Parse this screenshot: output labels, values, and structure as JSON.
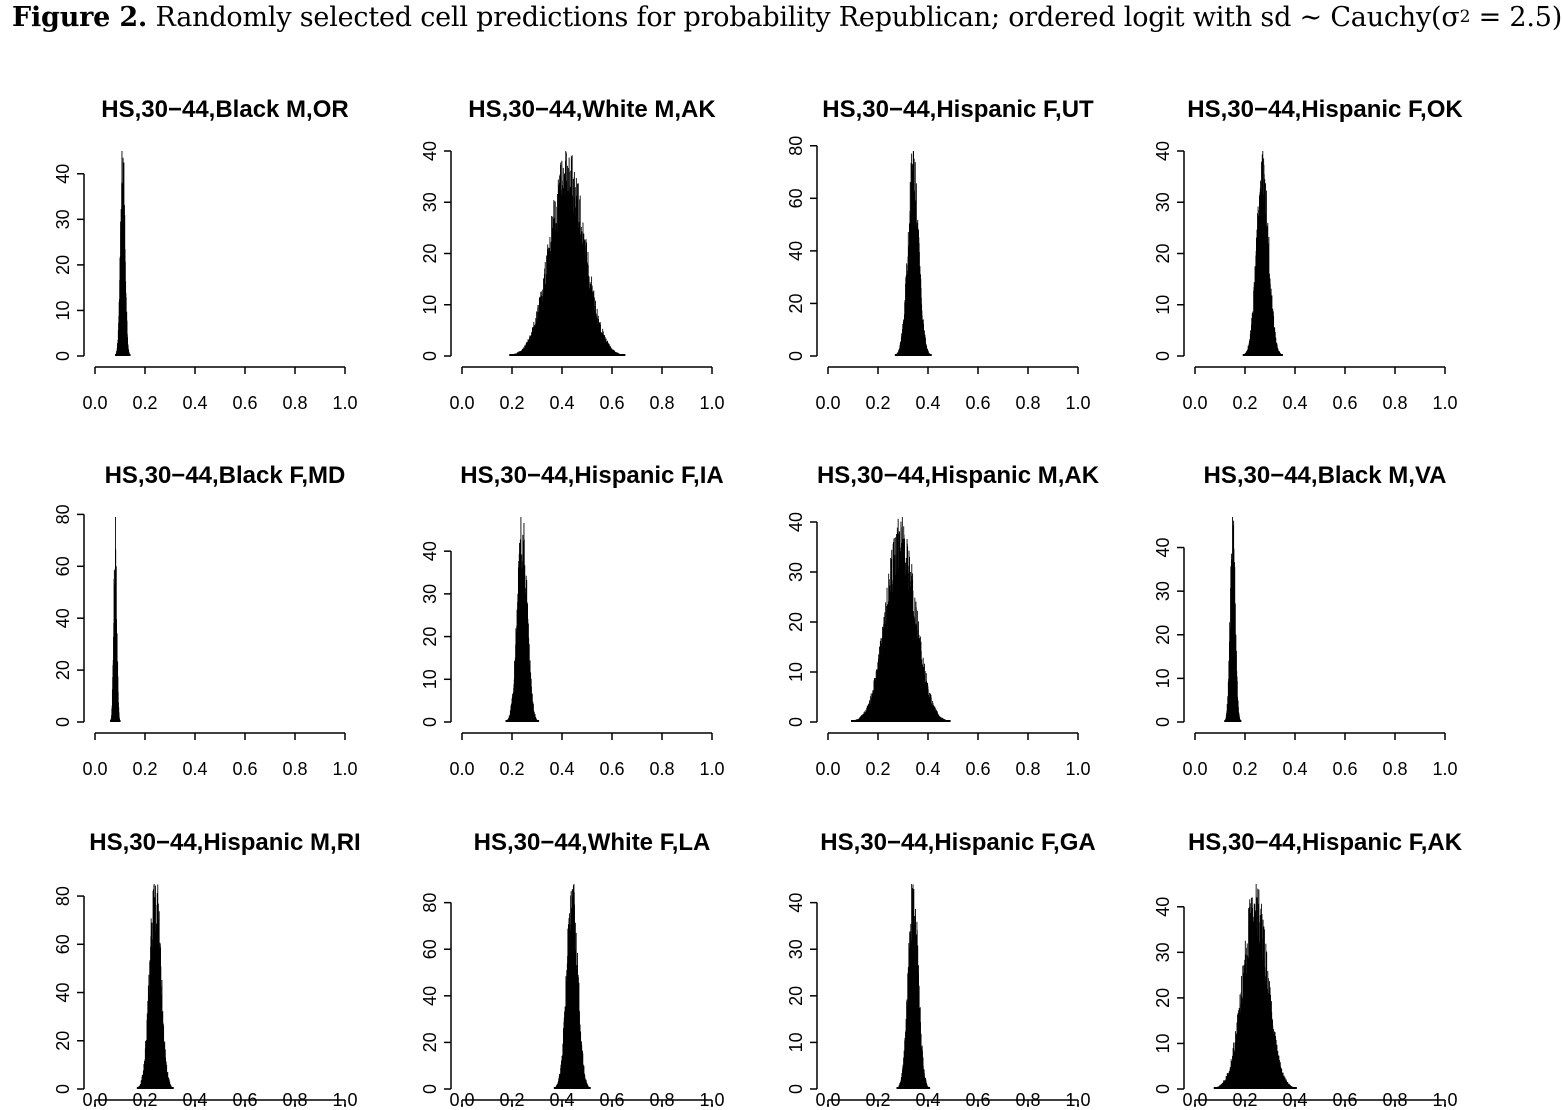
{
  "figure": {
    "label": "Figure 2.",
    "text_before": "Randomly selected cell predictions for probability Republican; ordered logit with sd ∼ Cauchy(σ",
    "superscript": "2",
    "text_after": " = 2.5)"
  },
  "colors": {
    "bars": "#000000",
    "axes": "#000000",
    "background": "#ffffff"
  },
  "chart_data": [
    {
      "type": "bar",
      "title": "HS,30−44,Black M,OR",
      "xlim": [
        0,
        1
      ],
      "xticks": [
        "0.0",
        "0.2",
        "0.4",
        "0.6",
        "0.8",
        "1.0"
      ],
      "yticks": [
        0,
        10,
        20,
        30,
        40
      ],
      "ymax_shown": 45,
      "mean": 0.11,
      "sd": 0.009
    },
    {
      "type": "bar",
      "title": "HS,30−44,White M,AK",
      "xlim": [
        0,
        1
      ],
      "xticks": [
        "0.0",
        "0.2",
        "0.4",
        "0.6",
        "0.8",
        "1.0"
      ],
      "yticks": [
        0,
        10,
        20,
        30,
        40
      ],
      "ymax_shown": 40,
      "mean": 0.42,
      "sd": 0.07
    },
    {
      "type": "bar",
      "title": "HS,30−44,Hispanic F,UT",
      "xlim": [
        0,
        1
      ],
      "xticks": [
        "0.0",
        "0.2",
        "0.4",
        "0.6",
        "0.8",
        "1.0"
      ],
      "yticks": [
        0,
        20,
        40,
        60,
        80
      ],
      "ymax_shown": 78,
      "mean": 0.34,
      "sd": 0.022
    },
    {
      "type": "bar",
      "title": "HS,30−44,Hispanic F,OK",
      "xlim": [
        0,
        1
      ],
      "xticks": [
        "0.0",
        "0.2",
        "0.4",
        "0.6",
        "0.8",
        "1.0"
      ],
      "yticks": [
        0,
        10,
        20,
        30,
        40
      ],
      "ymax_shown": 40,
      "mean": 0.27,
      "sd": 0.024
    },
    {
      "type": "bar",
      "title": "HS,30−44,Black F,MD",
      "xlim": [
        0,
        1
      ],
      "xticks": [
        "0.0",
        "0.2",
        "0.4",
        "0.6",
        "0.8",
        "1.0"
      ],
      "yticks": [
        0,
        20,
        40,
        60,
        80
      ],
      "ymax_shown": 79,
      "mean": 0.08,
      "sd": 0.006
    },
    {
      "type": "bar",
      "title": "HS,30−44,Hispanic F,IA",
      "xlim": [
        0,
        1
      ],
      "xticks": [
        "0.0",
        "0.2",
        "0.4",
        "0.6",
        "0.8",
        "1.0"
      ],
      "yticks": [
        0,
        10,
        20,
        30,
        40
      ],
      "ymax_shown": 48,
      "mean": 0.24,
      "sd": 0.02
    },
    {
      "type": "bar",
      "title": "HS,30−44,Hispanic M,AK",
      "xlim": [
        0,
        1
      ],
      "xticks": [
        "0.0",
        "0.2",
        "0.4",
        "0.6",
        "0.8",
        "1.0"
      ],
      "yticks": [
        0,
        10,
        20,
        30,
        40
      ],
      "ymax_shown": 41,
      "mean": 0.29,
      "sd": 0.06
    },
    {
      "type": "bar",
      "title": "HS,30−44,Black M,VA",
      "xlim": [
        0,
        1
      ],
      "xticks": [
        "0.0",
        "0.2",
        "0.4",
        "0.6",
        "0.8",
        "1.0"
      ],
      "yticks": [
        0,
        10,
        20,
        30,
        40
      ],
      "ymax_shown": 47,
      "mean": 0.15,
      "sd": 0.01
    },
    {
      "type": "bar",
      "title": "HS,30−44,Hispanic M,RI",
      "xlim": [
        0,
        1
      ],
      "xticks": [
        "0.0",
        "0.2",
        "0.4",
        "0.6",
        "0.8",
        "1.0"
      ],
      "yticks": [
        0,
        20,
        40,
        60,
        80
      ],
      "ymax_shown": 85,
      "mean": 0.24,
      "sd": 0.022
    },
    {
      "type": "bar",
      "title": "HS,30−44,White F,LA",
      "xlim": [
        0,
        1
      ],
      "xticks": [
        "0.0",
        "0.2",
        "0.4",
        "0.6",
        "0.8",
        "1.0"
      ],
      "yticks": [
        0,
        20,
        40,
        60,
        80
      ],
      "ymax_shown": 88,
      "mean": 0.44,
      "sd": 0.022
    },
    {
      "type": "bar",
      "title": "HS,30−44,Hispanic F,GA",
      "xlim": [
        0,
        1
      ],
      "xticks": [
        "0.0",
        "0.2",
        "0.4",
        "0.6",
        "0.8",
        "1.0"
      ],
      "yticks": [
        0,
        10,
        20,
        30,
        40
      ],
      "ymax_shown": 44,
      "mean": 0.34,
      "sd": 0.02
    },
    {
      "type": "bar",
      "title": "HS,30−44,Hispanic F,AK",
      "xlim": [
        0,
        1
      ],
      "xticks": [
        "0.0",
        "0.2",
        "0.4",
        "0.6",
        "0.8",
        "1.0"
      ],
      "yticks": [
        0,
        10,
        20,
        30,
        40
      ],
      "ymax_shown": 45,
      "mean": 0.24,
      "sd": 0.05
    }
  ]
}
